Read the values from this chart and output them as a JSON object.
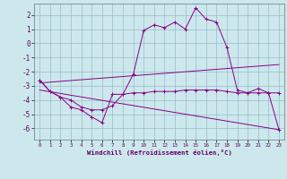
{
  "xlabel": "Windchill (Refroidissement éolien,°C)",
  "ylabel": "",
  "xlim": [
    -0.5,
    23.5
  ],
  "ylim": [
    -6.8,
    2.8
  ],
  "yticks": [
    2,
    1,
    0,
    -1,
    -2,
    -3,
    -4,
    -5,
    -6
  ],
  "xticks": [
    0,
    1,
    2,
    3,
    4,
    5,
    6,
    7,
    8,
    9,
    10,
    11,
    12,
    13,
    14,
    15,
    16,
    17,
    18,
    19,
    20,
    21,
    22,
    23
  ],
  "bg_color": "#cce8ec",
  "line_color": "#880088",
  "grid_color": "#99bbcc",
  "line1_x": [
    0,
    1,
    2,
    3,
    4,
    5,
    6,
    7,
    8,
    9,
    10,
    11,
    12,
    13,
    14,
    15,
    16,
    17,
    18,
    19,
    20,
    21,
    22,
    23
  ],
  "line1_y": [
    -2.6,
    -3.4,
    -3.8,
    -4.5,
    -4.7,
    -5.2,
    -5.6,
    -3.6,
    -3.6,
    -2.2,
    0.9,
    1.3,
    1.1,
    1.5,
    1.0,
    2.5,
    1.7,
    1.5,
    -0.3,
    -3.3,
    -3.5,
    -3.2,
    -3.5,
    -3.5
  ],
  "line2_x": [
    0,
    1,
    2,
    3,
    4,
    5,
    6,
    7,
    8,
    9,
    10,
    11,
    12,
    13,
    14,
    15,
    16,
    17,
    18,
    19,
    20,
    21,
    22,
    23
  ],
  "line2_y": [
    -2.6,
    -3.4,
    -3.8,
    -4.0,
    -4.5,
    -4.7,
    -4.7,
    -4.4,
    -3.6,
    -3.5,
    -3.5,
    -3.4,
    -3.4,
    -3.4,
    -3.3,
    -3.3,
    -3.3,
    -3.3,
    -3.4,
    -3.5,
    -3.5,
    -3.5,
    -3.5,
    -6.1
  ],
  "line3_x": [
    0,
    23
  ],
  "line3_y": [
    -2.8,
    -1.5
  ],
  "line4_x": [
    0,
    23
  ],
  "line4_y": [
    -3.3,
    -6.1
  ]
}
